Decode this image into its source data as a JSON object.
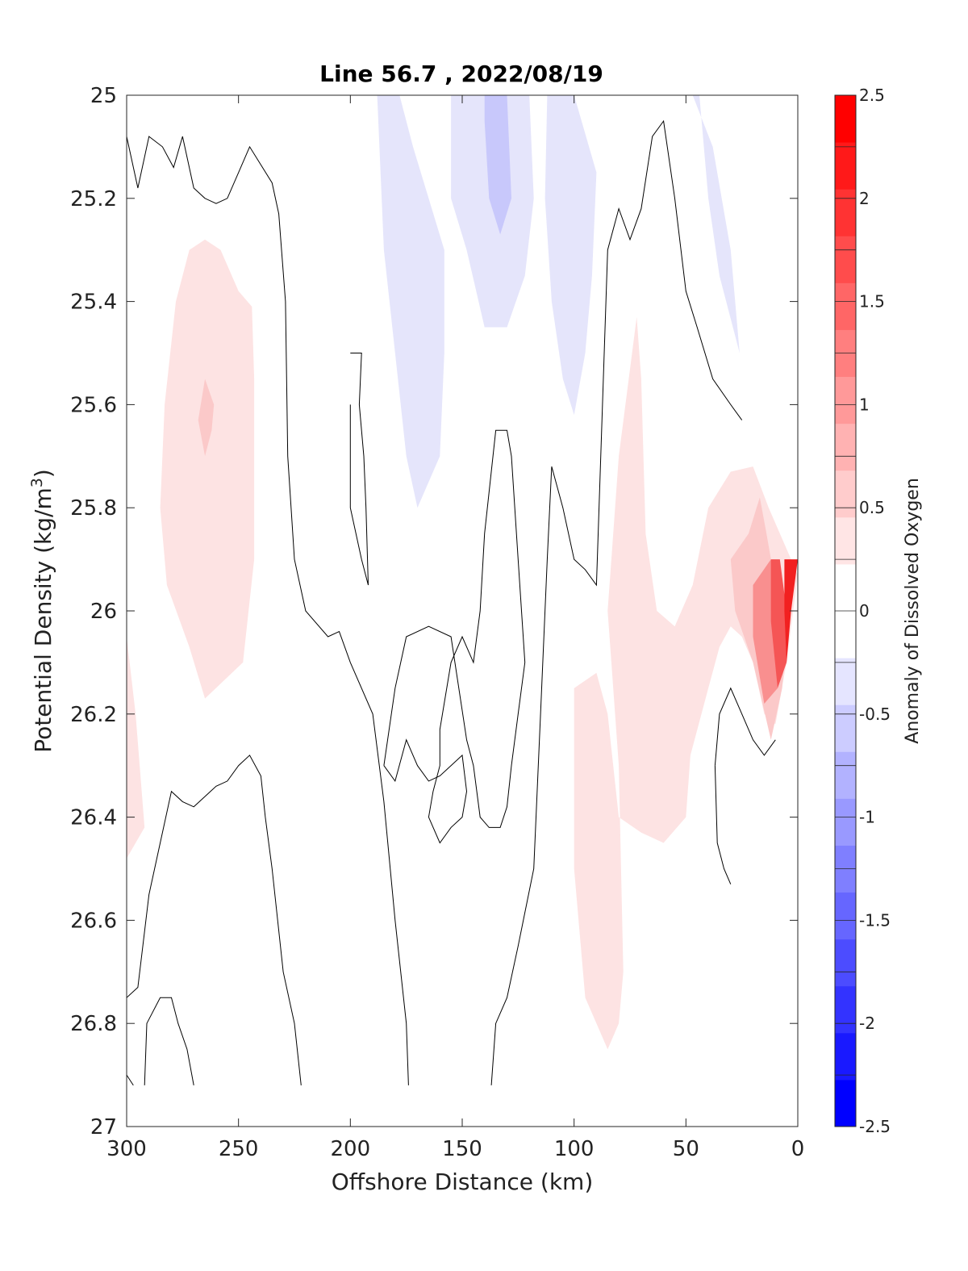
{
  "chart_data": {
    "type": "contourf",
    "title": "Line 56.7 , 2022/08/19",
    "xlabel": "Offshore Distance (km)",
    "ylabel_main": "Potential Density (kg/m",
    "ylabel_sup": "3",
    "ylabel_close": ")",
    "xlim": [
      300,
      0
    ],
    "ylim": [
      25,
      27
    ],
    "x_reversed": true,
    "y_reversed": true,
    "x_ticks": [
      300,
      250,
      200,
      150,
      100,
      50,
      0
    ],
    "x_tick_labels": [
      "300",
      "250",
      "200",
      "150",
      "100",
      "50",
      "0"
    ],
    "y_ticks": [
      25,
      25.2,
      25.4,
      25.6,
      25.8,
      26,
      26.2,
      26.4,
      26.6,
      26.8,
      27
    ],
    "y_tick_labels": [
      "25",
      "25.2",
      "25.4",
      "25.6",
      "25.8",
      "26",
      "26.2",
      "26.4",
      "26.6",
      "26.8",
      "27"
    ],
    "colorbar": {
      "label": "Anomaly of Dissolved Oxygen",
      "range": [
        -2.5,
        2.5
      ],
      "step": 0.25,
      "tick_values": [
        -2.5,
        -2,
        -1.5,
        -1,
        -0.5,
        0,
        0.5,
        1,
        1.5,
        2,
        2.5
      ],
      "tick_labels": [
        "-2.5",
        "-2",
        "-1.5",
        "-1",
        "-0.5",
        "0",
        "0.5",
        "1",
        "1.5",
        "2",
        "2.5"
      ],
      "colors": [
        "#0000ff",
        "#1919ff",
        "#3333ff",
        "#4c4cff",
        "#6666ff",
        "#7f7fff",
        "#9999ff",
        "#b2b2ff",
        "#ccccff",
        "#e5e5ff",
        "#ffffff",
        "#ffffff",
        "#ffe5e5",
        "#ffcccc",
        "#ffb2b2",
        "#ff9999",
        "#ff7f7f",
        "#ff6666",
        "#ff4c4c",
        "#ff3333",
        "#ff1919",
        "#ff0000"
      ]
    },
    "filled_regions": [
      {
        "level": 0.25,
        "color": "#fde3e3",
        "points": [
          [
            272,
            25.3
          ],
          [
            265,
            25.28
          ],
          [
            258,
            25.3
          ],
          [
            250,
            25.38
          ],
          [
            244,
            25.41
          ],
          [
            243,
            25.55
          ],
          [
            243,
            25.9
          ],
          [
            248,
            26.1
          ],
          [
            265,
            26.17
          ],
          [
            272,
            26.07
          ],
          [
            282,
            25.95
          ],
          [
            285,
            25.8
          ],
          [
            283,
            25.6
          ],
          [
            278,
            25.4
          ]
        ]
      },
      {
        "level": 0.5,
        "color": "#fbc9c9",
        "points": [
          [
            265,
            25.55
          ],
          [
            261,
            25.6
          ],
          [
            262,
            25.65
          ],
          [
            265,
            25.7
          ],
          [
            268,
            25.63
          ]
        ]
      },
      {
        "level": 0.25,
        "color": "#fde3e3",
        "points": [
          [
            300,
            26.05
          ],
          [
            296,
            26.2
          ],
          [
            292,
            26.42
          ],
          [
            300,
            26.48
          ]
        ]
      },
      {
        "level": 0.25,
        "color": "#fde3e3",
        "points": [
          [
            100,
            26.15
          ],
          [
            90,
            26.12
          ],
          [
            85,
            26.2
          ],
          [
            80,
            26.4
          ],
          [
            70,
            26.43
          ],
          [
            60,
            26.45
          ],
          [
            50,
            26.4
          ],
          [
            48,
            26.28
          ],
          [
            40,
            26.15
          ],
          [
            35,
            26.07
          ],
          [
            30,
            26.03
          ],
          [
            25,
            26.05
          ],
          [
            20,
            26.1
          ],
          [
            15,
            26.2
          ],
          [
            10,
            26.22
          ],
          [
            5,
            26.1
          ],
          [
            0,
            25.93
          ],
          [
            13,
            25.8
          ],
          [
            20,
            25.72
          ],
          [
            30,
            25.73
          ],
          [
            40,
            25.8
          ],
          [
            47,
            25.95
          ],
          [
            55,
            26.03
          ],
          [
            63,
            26.0
          ],
          [
            68,
            25.85
          ],
          [
            70,
            25.55
          ],
          [
            72,
            25.43
          ],
          [
            80,
            25.7
          ],
          [
            85,
            26.0
          ],
          [
            80,
            26.3
          ],
          [
            78,
            26.7
          ],
          [
            80,
            26.8
          ],
          [
            85,
            26.85
          ],
          [
            95,
            26.75
          ],
          [
            100,
            26.5
          ]
        ]
      },
      {
        "level": 0.5,
        "color": "#fbc9c9",
        "points": [
          [
            30,
            25.9
          ],
          [
            22,
            25.85
          ],
          [
            17,
            25.78
          ],
          [
            14,
            25.85
          ],
          [
            10,
            25.95
          ],
          [
            5,
            26.05
          ],
          [
            7,
            26.15
          ],
          [
            12,
            26.25
          ],
          [
            20,
            26.1
          ],
          [
            28,
            26.0
          ]
        ]
      },
      {
        "level": 1.0,
        "color": "#f98f8f",
        "points": [
          [
            20,
            25.95
          ],
          [
            12,
            25.9
          ],
          [
            8,
            25.98
          ],
          [
            9,
            26.15
          ],
          [
            15,
            26.18
          ],
          [
            20,
            26.05
          ]
        ]
      },
      {
        "level": 1.5,
        "color": "#f55555",
        "points": [
          [
            12,
            25.9
          ],
          [
            8,
            25.9
          ],
          [
            5,
            26.0
          ],
          [
            5,
            26.1
          ],
          [
            9,
            26.15
          ],
          [
            12,
            26.02
          ]
        ]
      },
      {
        "level": 2.0,
        "color": "#f22020",
        "points": [
          [
            6,
            25.9
          ],
          [
            0,
            25.9
          ],
          [
            3,
            26.0
          ],
          [
            5,
            26.1
          ],
          [
            6,
            26.0
          ]
        ]
      },
      {
        "level": -0.25,
        "color": "#e5e5fb",
        "points": [
          [
            188,
            25.0
          ],
          [
            178,
            25.0
          ],
          [
            172,
            25.1
          ],
          [
            165,
            25.2
          ],
          [
            158,
            25.3
          ],
          [
            158,
            25.5
          ],
          [
            160,
            25.7
          ],
          [
            165,
            25.75
          ],
          [
            170,
            25.8
          ],
          [
            175,
            25.7
          ],
          [
            180,
            25.5
          ],
          [
            185,
            25.3
          ]
        ]
      },
      {
        "level": -0.25,
        "color": "#e5e5fb",
        "points": [
          [
            155,
            25.0
          ],
          [
            120,
            25.0
          ],
          [
            118,
            25.2
          ],
          [
            122,
            25.35
          ],
          [
            130,
            25.45
          ],
          [
            140,
            25.45
          ],
          [
            148,
            25.3
          ],
          [
            155,
            25.2
          ]
        ]
      },
      {
        "level": -0.5,
        "color": "#c8c8fb",
        "points": [
          [
            140,
            25.0
          ],
          [
            130,
            25.0
          ],
          [
            128,
            25.2
          ],
          [
            133,
            25.27
          ],
          [
            138,
            25.2
          ],
          [
            140,
            25.05
          ]
        ]
      },
      {
        "level": -0.25,
        "color": "#e5e5fb",
        "points": [
          [
            112,
            25.0
          ],
          [
            100,
            25.0
          ],
          [
            90,
            25.15
          ],
          [
            92,
            25.35
          ],
          [
            95,
            25.5
          ],
          [
            100,
            25.62
          ],
          [
            105,
            25.55
          ],
          [
            110,
            25.4
          ],
          [
            113,
            25.2
          ]
        ]
      },
      {
        "level": -0.25,
        "color": "#e5e5fb",
        "points": [
          [
            47,
            25.0
          ],
          [
            44,
            25.0
          ],
          [
            40,
            25.2
          ],
          [
            35,
            25.35
          ],
          [
            26,
            25.5
          ],
          [
            30,
            25.3
          ],
          [
            38,
            25.1
          ]
        ]
      }
    ],
    "zero_contours": [
      [
        [
          300,
          25.08
        ],
        [
          295,
          25.18
        ],
        [
          290,
          25.08
        ],
        [
          284,
          25.1
        ],
        [
          279,
          25.14
        ],
        [
          275,
          25.08
        ],
        [
          270,
          25.18
        ],
        [
          265,
          25.2
        ],
        [
          260,
          25.21
        ],
        [
          255,
          25.2
        ],
        [
          250,
          25.15
        ],
        [
          245,
          25.1
        ],
        [
          235,
          25.17
        ],
        [
          232,
          25.23
        ],
        [
          229,
          25.4
        ],
        [
          228,
          25.7
        ],
        [
          225,
          25.9
        ],
        [
          220,
          26.0
        ],
        [
          210,
          26.05
        ],
        [
          205,
          26.04
        ],
        [
          200,
          26.1
        ],
        [
          190,
          26.2
        ],
        [
          185,
          26.37
        ],
        [
          180,
          26.6
        ],
        [
          175,
          26.8
        ],
        [
          174,
          26.92
        ]
      ],
      [
        [
          300,
          26.75
        ],
        [
          295,
          26.73
        ],
        [
          290,
          26.55
        ],
        [
          285,
          26.45
        ],
        [
          280,
          26.35
        ],
        [
          275,
          26.37
        ],
        [
          270,
          26.38
        ],
        [
          265,
          26.36
        ],
        [
          260,
          26.34
        ],
        [
          255,
          26.33
        ],
        [
          250,
          26.3
        ],
        [
          245,
          26.28
        ],
        [
          240,
          26.32
        ],
        [
          238,
          26.4
        ],
        [
          235,
          26.5
        ],
        [
          230,
          26.7
        ],
        [
          225,
          26.8
        ],
        [
          222,
          26.92
        ]
      ],
      [
        [
          300,
          26.9
        ],
        [
          297,
          26.92
        ]
      ],
      [
        [
          292,
          26.92
        ],
        [
          291,
          26.8
        ],
        [
          285,
          26.75
        ],
        [
          280,
          26.75
        ],
        [
          277,
          26.8
        ],
        [
          273,
          26.85
        ],
        [
          270,
          26.92
        ]
      ],
      [
        [
          200,
          25.5
        ],
        [
          195,
          25.5
        ],
        [
          196,
          25.6
        ],
        [
          194,
          25.7
        ],
        [
          193,
          25.8
        ],
        [
          192,
          25.95
        ],
        [
          195,
          25.9
        ],
        [
          200,
          25.8
        ],
        [
          200,
          25.6
        ]
      ],
      [
        [
          185,
          26.3
        ],
        [
          180,
          26.33
        ],
        [
          175,
          26.25
        ],
        [
          170,
          26.3
        ],
        [
          165,
          26.33
        ],
        [
          160,
          26.32
        ],
        [
          155,
          26.3
        ],
        [
          150,
          26.28
        ],
        [
          148,
          26.35
        ],
        [
          150,
          26.4
        ],
        [
          155,
          26.42
        ],
        [
          160,
          26.45
        ],
        [
          165,
          26.4
        ],
        [
          163,
          26.35
        ],
        [
          160,
          26.3
        ],
        [
          160,
          26.23
        ],
        [
          155,
          26.1
        ],
        [
          150,
          26.05
        ],
        [
          145,
          26.1
        ],
        [
          142,
          26.0
        ],
        [
          140,
          25.85
        ],
        [
          135,
          25.65
        ],
        [
          130,
          25.65
        ],
        [
          128,
          25.7
        ],
        [
          125,
          25.9
        ],
        [
          122,
          26.1
        ],
        [
          125,
          26.2
        ],
        [
          128,
          26.3
        ],
        [
          130,
          26.38
        ],
        [
          133,
          26.42
        ],
        [
          138,
          26.42
        ],
        [
          142,
          26.4
        ],
        [
          145,
          26.3
        ],
        [
          148,
          26.25
        ],
        [
          155,
          26.05
        ],
        [
          165,
          26.03
        ],
        [
          175,
          26.05
        ],
        [
          180,
          26.15
        ],
        [
          185,
          26.3
        ]
      ],
      [
        [
          137,
          26.92
        ],
        [
          135,
          26.8
        ],
        [
          130,
          26.75
        ],
        [
          125,
          26.65
        ],
        [
          118,
          26.5
        ],
        [
          115,
          26.2
        ],
        [
          112,
          25.9
        ],
        [
          110,
          25.72
        ],
        [
          105,
          25.8
        ],
        [
          100,
          25.9
        ],
        [
          95,
          25.92
        ],
        [
          90,
          25.95
        ],
        [
          85,
          25.3
        ],
        [
          80,
          25.22
        ],
        [
          75,
          25.28
        ],
        [
          70,
          25.22
        ],
        [
          65,
          25.08
        ],
        [
          60,
          25.05
        ],
        [
          55,
          25.2
        ],
        [
          50,
          25.38
        ],
        [
          45,
          25.45
        ],
        [
          38,
          25.55
        ],
        [
          30,
          25.6
        ],
        [
          25,
          25.63
        ]
      ],
      [
        [
          37,
          26.3
        ],
        [
          35,
          26.2
        ],
        [
          30,
          26.15
        ],
        [
          25,
          26.2
        ],
        [
          20,
          26.25
        ],
        [
          15,
          26.28
        ],
        [
          10,
          26.25
        ]
      ],
      [
        [
          37,
          26.3
        ],
        [
          36,
          26.45
        ],
        [
          33,
          26.5
        ],
        [
          30,
          26.53
        ]
      ]
    ]
  }
}
